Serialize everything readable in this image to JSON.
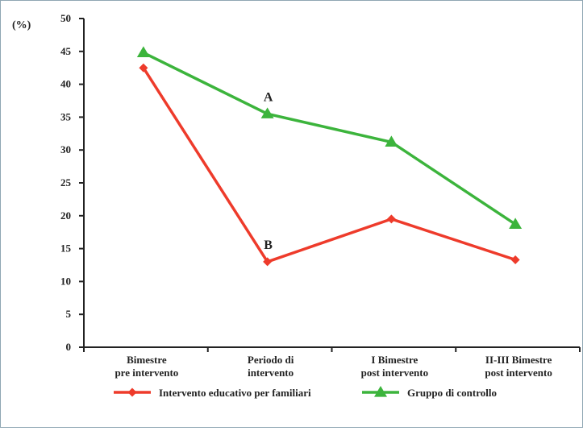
{
  "chart_data": {
    "type": "line",
    "y_unit_label": "(%)",
    "categories": [
      [
        "Bimestre",
        "pre intervento"
      ],
      [
        "Periodo di",
        "intervento"
      ],
      [
        "I Bimestre",
        "post intervento"
      ],
      [
        "II-III Bimestre",
        "post intervento"
      ]
    ],
    "ylim": [
      0,
      50
    ],
    "yticks": [
      0,
      5,
      10,
      15,
      20,
      25,
      30,
      35,
      40,
      45,
      50
    ],
    "grid": false,
    "legend_position": "bottom",
    "series": [
      {
        "name": "Intervento educativo per familiari",
        "marker": "diamond",
        "color": "#ee3b2b",
        "values": [
          42.5,
          13,
          19.5,
          13.3
        ]
      },
      {
        "name": "Gruppo di controllo",
        "marker": "triangle",
        "color": "#3cb43c",
        "values": [
          44.8,
          35.5,
          31.2,
          18.7
        ]
      }
    ],
    "annotations": [
      {
        "text": "A",
        "series": 1,
        "point": 1
      },
      {
        "text": "B",
        "series": 0,
        "point": 1
      }
    ]
  }
}
